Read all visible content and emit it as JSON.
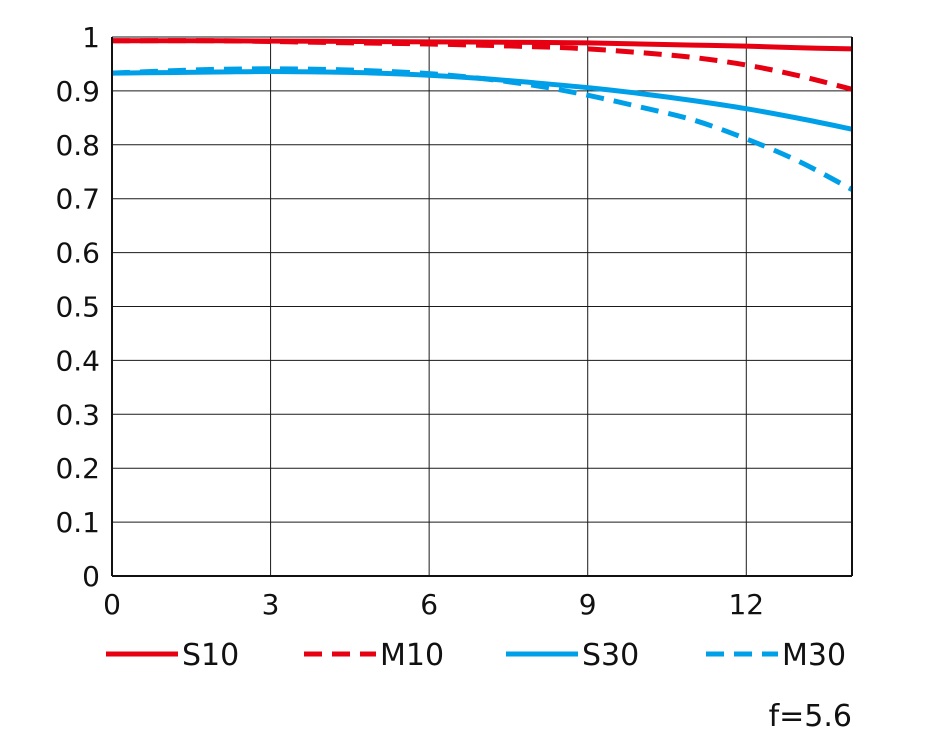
{
  "chart_data": {
    "type": "line",
    "title": "",
    "xlabel": "",
    "ylabel": "",
    "xlim": [
      0,
      14
    ],
    "ylim": [
      0,
      1
    ],
    "x_ticks": [
      0,
      3,
      6,
      9,
      12
    ],
    "x_tick_labels": [
      "0",
      "3",
      "6",
      "9",
      "12"
    ],
    "y_ticks": [
      0,
      0.1,
      0.2,
      0.3,
      0.4,
      0.5,
      0.6,
      0.7,
      0.8,
      0.9,
      1
    ],
    "y_tick_labels": [
      "0",
      "0.1",
      "0.2",
      "0.3",
      "0.4",
      "0.5",
      "0.6",
      "0.7",
      "0.8",
      "0.9",
      "1"
    ],
    "grid": true,
    "legend_position": "bottom",
    "annotation": "f=5.6",
    "series": [
      {
        "name": "S10",
        "color": "#e60012",
        "style": "solid",
        "x": [
          0,
          2,
          4,
          6,
          8,
          9,
          10,
          11,
          12,
          13,
          14
        ],
        "y": [
          0.993,
          0.993,
          0.992,
          0.991,
          0.99,
          0.989,
          0.987,
          0.985,
          0.983,
          0.98,
          0.978
        ]
      },
      {
        "name": "M10",
        "color": "#e60012",
        "style": "dashed",
        "x": [
          0,
          2,
          4,
          6,
          8,
          9,
          10,
          11,
          12,
          13,
          14
        ],
        "y": [
          0.993,
          0.993,
          0.99,
          0.987,
          0.982,
          0.978,
          0.971,
          0.962,
          0.948,
          0.928,
          0.903
        ]
      },
      {
        "name": "S30",
        "color": "#00a0e9",
        "style": "solid",
        "x": [
          0,
          1,
          2,
          3,
          4,
          5,
          6,
          7,
          8,
          9,
          10,
          11,
          12,
          13,
          14
        ],
        "y": [
          0.933,
          0.934,
          0.935,
          0.936,
          0.935,
          0.933,
          0.929,
          0.923,
          0.915,
          0.906,
          0.895,
          0.882,
          0.867,
          0.849,
          0.829
        ]
      },
      {
        "name": "M30",
        "color": "#00a0e9",
        "style": "dashed",
        "x": [
          0,
          1,
          2,
          3,
          4,
          5,
          6,
          7,
          8,
          9,
          10,
          11,
          12,
          13,
          14
        ],
        "y": [
          0.933,
          0.937,
          0.94,
          0.941,
          0.94,
          0.937,
          0.932,
          0.923,
          0.91,
          0.892,
          0.87,
          0.846,
          0.811,
          0.769,
          0.717
        ]
      }
    ]
  }
}
